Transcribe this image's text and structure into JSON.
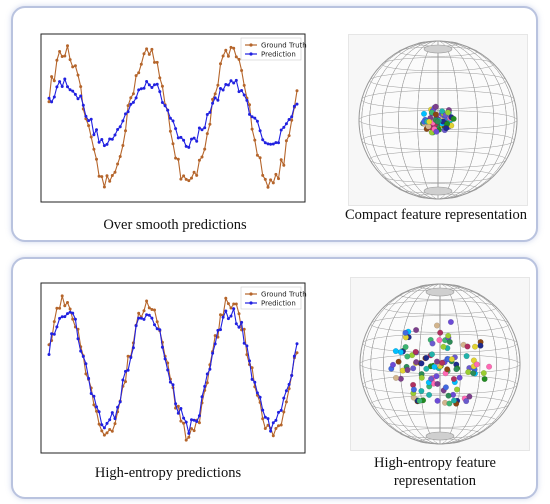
{
  "panels": [
    {
      "chart_caption": "Over smooth predictions",
      "feature_caption": "Compact feature representation"
    },
    {
      "chart_caption": "High-entropy predictions",
      "feature_caption_line1": "High-entropy feature",
      "feature_caption_line2": "representation"
    }
  ],
  "chart_data": [
    {
      "type": "line",
      "title": "",
      "xlabel": "",
      "ylabel": "",
      "legend_position": "top-right",
      "series": [
        {
          "name": "Ground Truth",
          "color": "#b5652b",
          "pattern": "sine-wave-3-periods-high-amplitude"
        },
        {
          "name": "Prediction",
          "color": "#2020e0",
          "pattern": "sine-wave-3-periods-damped-amplitude"
        }
      ]
    },
    {
      "type": "line",
      "title": "",
      "xlabel": "",
      "ylabel": "",
      "legend_position": "top-right",
      "series": [
        {
          "name": "Ground Truth",
          "color": "#b5652b",
          "pattern": "sine-wave-3-periods-high-amplitude"
        },
        {
          "name": "Prediction",
          "color": "#2020e0",
          "pattern": "sine-wave-3-periods-close-tracking"
        }
      ]
    }
  ],
  "colors": {
    "panel_border": "#b9c3df",
    "ground_truth": "#b5652b",
    "prediction": "#2020e0",
    "sphere_grid": "#9a9a9a"
  }
}
